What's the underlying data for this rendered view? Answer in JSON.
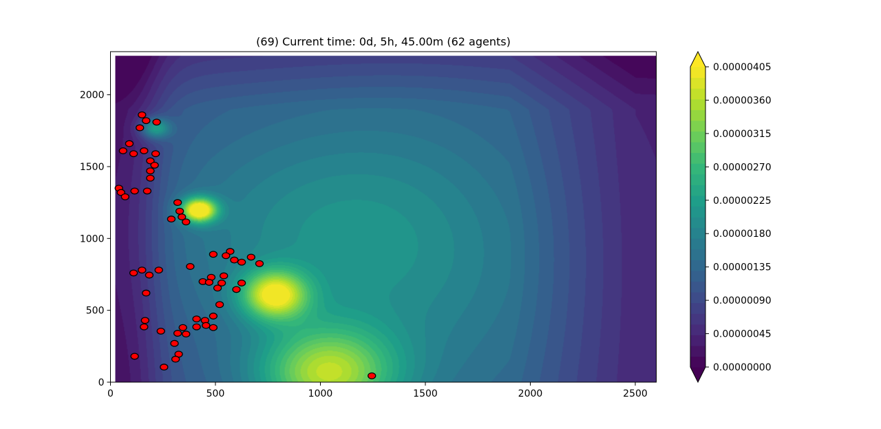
{
  "chart_data": {
    "type": "heatmap",
    "title": "(69) Current time: 0d, 5h, 45.00m (62 agents)",
    "xlabel": "",
    "ylabel": "",
    "xlim": [
      0,
      2600
    ],
    "ylim": [
      0,
      2300
    ],
    "x_ticks": [
      0,
      500,
      1000,
      1500,
      2000,
      2500
    ],
    "x_tick_labels": [
      "0",
      "500",
      "1000",
      "1500",
      "2000",
      "2500"
    ],
    "y_ticks": [
      0,
      500,
      1000,
      1500,
      2000
    ],
    "y_tick_labels": [
      "0",
      "500",
      "1000",
      "1500",
      "2000"
    ],
    "grid": false,
    "colormap": "viridis",
    "colors": {
      "cmap": [
        "#440154",
        "#482878",
        "#3e4989",
        "#31688e",
        "#26828e",
        "#1f9e89",
        "#35b779",
        "#6ece58",
        "#b5de2b",
        "#fde725"
      ],
      "agent_fill": "#ff0000",
      "agent_edge": "#000000"
    },
    "colorbar": {
      "min": 0.0,
      "max": 4.05e-06,
      "extend": "both",
      "levels": 28,
      "ticks": [
        0.0,
        4.5e-07,
        9e-07,
        1.35e-06,
        1.8e-06,
        2.25e-06,
        2.7e-06,
        3.15e-06,
        3.6e-06,
        4.05e-06
      ],
      "tick_labels": [
        "0.00000000",
        "0.00000045",
        "0.00000090",
        "0.00000135",
        "0.00000180",
        "0.00000225",
        "0.00000270",
        "0.00000315",
        "0.00000360",
        "0.00000405"
      ]
    },
    "field": {
      "base": 1.1e-06,
      "west_low": {
        "center_x": 80,
        "value": 1e-07,
        "width": 170
      },
      "sources": [
        {
          "x": 1030,
          "y": 60,
          "value": 2.2e-06,
          "sx": 230,
          "sy": 230
        },
        {
          "x": 780,
          "y": 610,
          "value": 2.5e-06,
          "sx": 110,
          "sy": 120
        },
        {
          "x": 420,
          "y": 1200,
          "value": 3.2e-06,
          "sx": 60,
          "sy": 60
        },
        {
          "x": 210,
          "y": 1770,
          "value": 1.5e-06,
          "sx": 50,
          "sy": 50
        }
      ],
      "plumes": [
        {
          "x": 950,
          "y": 1050,
          "value": 7e-07,
          "sx": 550,
          "sy": 550
        },
        {
          "x": 1500,
          "y": 700,
          "value": 5e-07,
          "sx": 500,
          "sy": 900
        }
      ],
      "east_decay": {
        "start_x": 1900,
        "value": 7e-07
      },
      "north_decay": {
        "start_y": 1900,
        "value": 5e-07
      }
    },
    "agents": [
      [
        150,
        1860
      ],
      [
        170,
        1820
      ],
      [
        220,
        1810
      ],
      [
        140,
        1770
      ],
      [
        90,
        1660
      ],
      [
        60,
        1610
      ],
      [
        110,
        1590
      ],
      [
        160,
        1610
      ],
      [
        215,
        1590
      ],
      [
        190,
        1540
      ],
      [
        210,
        1510
      ],
      [
        190,
        1470
      ],
      [
        190,
        1420
      ],
      [
        40,
        1350
      ],
      [
        50,
        1320
      ],
      [
        70,
        1290
      ],
      [
        115,
        1330
      ],
      [
        175,
        1330
      ],
      [
        320,
        1250
      ],
      [
        330,
        1190
      ],
      [
        340,
        1150
      ],
      [
        360,
        1115
      ],
      [
        290,
        1135
      ],
      [
        570,
        910
      ],
      [
        490,
        890
      ],
      [
        550,
        880
      ],
      [
        670,
        870
      ],
      [
        590,
        850
      ],
      [
        625,
        835
      ],
      [
        710,
        825
      ],
      [
        380,
        805
      ],
      [
        230,
        780
      ],
      [
        150,
        780
      ],
      [
        110,
        760
      ],
      [
        185,
        745
      ],
      [
        540,
        740
      ],
      [
        480,
        730
      ],
      [
        440,
        700
      ],
      [
        470,
        695
      ],
      [
        530,
        690
      ],
      [
        625,
        690
      ],
      [
        510,
        655
      ],
      [
        600,
        645
      ],
      [
        170,
        620
      ],
      [
        520,
        540
      ],
      [
        490,
        460
      ],
      [
        410,
        440
      ],
      [
        450,
        430
      ],
      [
        165,
        430
      ],
      [
        160,
        385
      ],
      [
        345,
        380
      ],
      [
        410,
        385
      ],
      [
        455,
        395
      ],
      [
        490,
        380
      ],
      [
        240,
        355
      ],
      [
        320,
        340
      ],
      [
        360,
        335
      ],
      [
        305,
        270
      ],
      [
        325,
        195
      ],
      [
        115,
        180
      ],
      [
        310,
        160
      ],
      [
        255,
        105
      ]
    ],
    "agent_count": 62,
    "partial_marker": [
      1245,
      25
    ]
  }
}
